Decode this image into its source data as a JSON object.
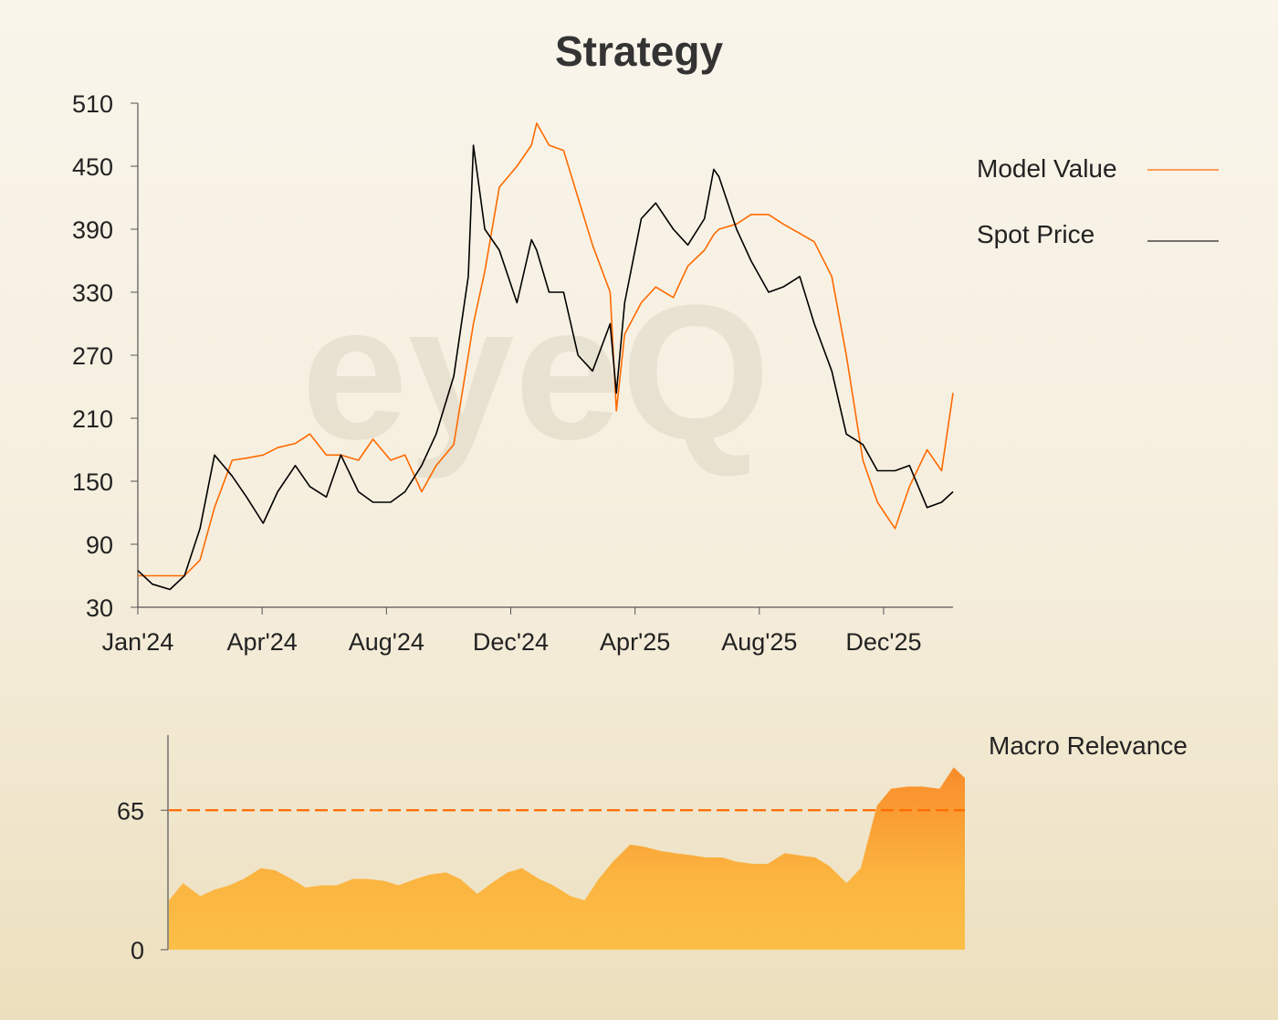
{
  "title": "Strategy",
  "watermark": "eyeQ",
  "colors": {
    "model": "#ff6a00",
    "spot": "#000000",
    "area_top": "#f98c2a",
    "area_bottom": "#fbbf47",
    "threshold": "#ff6a00"
  },
  "chart_data": [
    {
      "type": "line",
      "title": "Strategy",
      "xlabel": "",
      "ylabel": "",
      "xlim": [
        "2024-01-01",
        "2026-02-26"
      ],
      "ylim": [
        30,
        510
      ],
      "yticks": [
        30,
        90,
        150,
        210,
        270,
        330,
        390,
        450,
        510
      ],
      "xticks": [
        {
          "date": "2024-01-01",
          "label": "Jan'24"
        },
        {
          "date": "2024-04-30",
          "label": "Apr'24"
        },
        {
          "date": "2024-08-28",
          "label": "Aug'24"
        },
        {
          "date": "2024-12-26",
          "label": "Dec'24"
        },
        {
          "date": "2025-04-25",
          "label": "Apr'25"
        },
        {
          "date": "2025-08-23",
          "label": "Aug'25"
        },
        {
          "date": "2025-12-21",
          "label": "Dec'25"
        }
      ],
      "grid": false,
      "legend": "right",
      "x": [
        "2024-01-01",
        "2024-01-15",
        "2024-02-01",
        "2024-02-15",
        "2024-03-01",
        "2024-03-15",
        "2024-04-01",
        "2024-04-15",
        "2024-05-01",
        "2024-05-15",
        "2024-06-01",
        "2024-06-15",
        "2024-07-01",
        "2024-07-15",
        "2024-08-01",
        "2024-08-15",
        "2024-09-01",
        "2024-09-15",
        "2024-10-01",
        "2024-10-15",
        "2024-11-01",
        "2024-11-15",
        "2024-11-20",
        "2024-12-01",
        "2024-12-15",
        "2025-01-01",
        "2025-01-15",
        "2025-01-20",
        "2025-02-01",
        "2025-02-15",
        "2025-03-01",
        "2025-03-15",
        "2025-04-01",
        "2025-04-07",
        "2025-04-15",
        "2025-05-01",
        "2025-05-15",
        "2025-06-01",
        "2025-06-15",
        "2025-07-01",
        "2025-07-10",
        "2025-07-15",
        "2025-08-01",
        "2025-08-15",
        "2025-09-01",
        "2025-09-15",
        "2025-10-01",
        "2025-10-15",
        "2025-11-01",
        "2025-11-15",
        "2025-12-01",
        "2025-12-15",
        "2026-01-01",
        "2026-01-15",
        "2026-02-01",
        "2026-02-15",
        "2026-02-26"
      ],
      "series": [
        {
          "name": "Model Value",
          "color": "#ff6a00",
          "values": [
            60,
            60,
            60,
            60,
            75,
            125,
            170,
            172,
            175,
            182,
            186,
            195,
            175,
            175,
            170,
            190,
            170,
            175,
            140,
            165,
            185,
            270,
            300,
            350,
            430,
            450,
            470,
            491,
            470,
            465,
            420,
            375,
            330,
            217,
            290,
            320,
            335,
            325,
            355,
            370,
            385,
            390,
            395,
            404,
            404,
            395,
            386,
            378,
            345,
            270,
            170,
            130,
            105,
            145,
            180,
            160,
            234
          ]
        },
        {
          "name": "Spot Price",
          "color": "#000000",
          "values": [
            65,
            52,
            47,
            60,
            105,
            175,
            155,
            135,
            110,
            140,
            165,
            145,
            135,
            175,
            140,
            130,
            130,
            140,
            165,
            195,
            250,
            345,
            470,
            390,
            370,
            320,
            380,
            370,
            330,
            330,
            270,
            255,
            300,
            234,
            320,
            400,
            415,
            390,
            375,
            400,
            447,
            440,
            390,
            360,
            330,
            335,
            345,
            300,
            255,
            195,
            185,
            160,
            160,
            165,
            125,
            130,
            140
          ]
        }
      ]
    },
    {
      "type": "area",
      "title": "Macro Relevance",
      "ylim": [
        0,
        100
      ],
      "yticks": [
        0,
        65
      ],
      "threshold": 65,
      "legend": "top-right",
      "x": [
        "2024-01-01",
        "2024-01-15",
        "2024-02-01",
        "2024-02-15",
        "2024-03-01",
        "2024-03-15",
        "2024-04-01",
        "2024-04-15",
        "2024-05-01",
        "2024-05-15",
        "2024-06-01",
        "2024-06-15",
        "2024-07-01",
        "2024-07-15",
        "2024-08-01",
        "2024-08-15",
        "2024-09-01",
        "2024-09-15",
        "2024-10-01",
        "2024-10-15",
        "2024-11-01",
        "2024-11-15",
        "2024-12-01",
        "2024-12-15",
        "2025-01-01",
        "2025-01-15",
        "2025-02-01",
        "2025-02-15",
        "2025-03-01",
        "2025-03-15",
        "2025-04-01",
        "2025-04-15",
        "2025-05-01",
        "2025-05-15",
        "2025-06-01",
        "2025-06-15",
        "2025-07-01",
        "2025-07-15",
        "2025-08-01",
        "2025-08-15",
        "2025-09-01",
        "2025-09-15",
        "2025-10-01",
        "2025-10-15",
        "2025-11-01",
        "2025-11-15",
        "2025-12-01",
        "2025-12-15",
        "2026-01-01",
        "2026-01-15",
        "2026-02-01",
        "2026-02-15",
        "2026-02-26"
      ],
      "series": [
        {
          "name": "Macro Relevance",
          "values": [
            23,
            31,
            25,
            28,
            30,
            33,
            38,
            37,
            33,
            29,
            30,
            30,
            33,
            33,
            32,
            30,
            33,
            35,
            36,
            33,
            26,
            31,
            36,
            38,
            33,
            30,
            25,
            23,
            33,
            41,
            49,
            48,
            46,
            45,
            44,
            43,
            43,
            41,
            40,
            40,
            45,
            44,
            43,
            39,
            31,
            38,
            67,
            75,
            76,
            76,
            75,
            85,
            80
          ]
        }
      ]
    }
  ]
}
